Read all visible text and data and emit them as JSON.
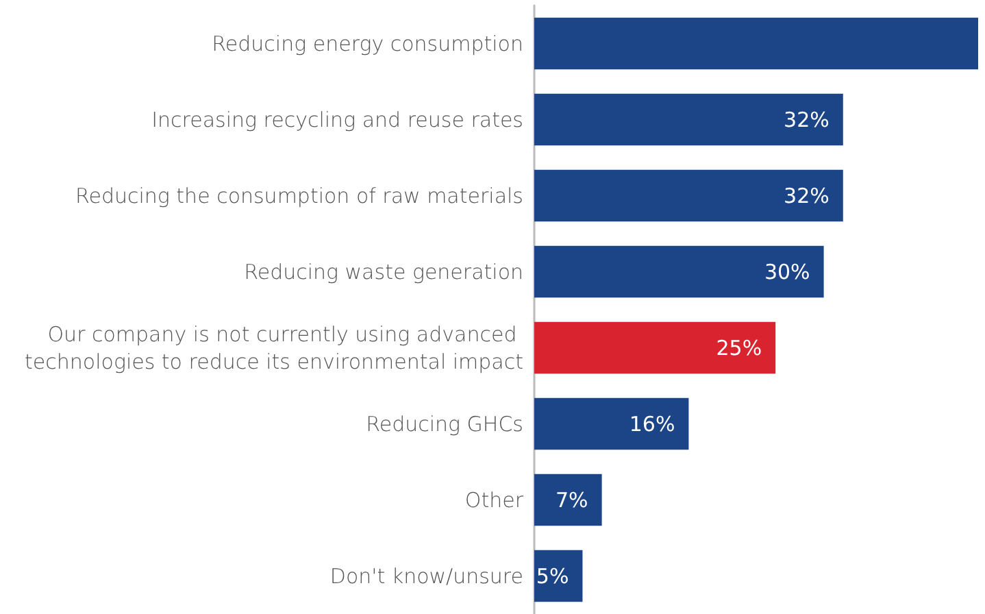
{
  "chart_data": {
    "type": "bar",
    "orientation": "horizontal",
    "categories": [
      "Reducing energy consumption",
      "Increasing recycling and reuse rates",
      "Reducing the consumption of raw materials",
      "Reducing waste generation",
      "Our company is not currently using advanced technologies to reduce its environmental impact",
      "Reducing GHCs",
      "Other",
      "Don't know/unsure"
    ],
    "values": [
      46,
      32,
      32,
      30,
      25,
      16,
      7,
      5
    ],
    "value_labels": [
      null,
      "32%",
      "32%",
      "30%",
      "25%",
      "16%",
      "7%",
      "5%"
    ],
    "colors": [
      "#1c4587",
      "#1c4587",
      "#1c4587",
      "#1c4587",
      "#d9232e",
      "#1c4587",
      "#1c4587",
      "#1c4587"
    ],
    "grid": false
  }
}
